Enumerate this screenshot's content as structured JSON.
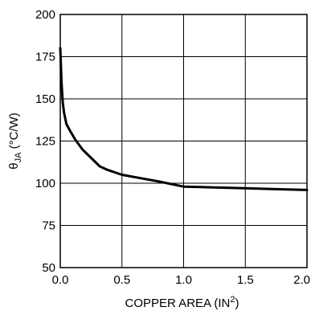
{
  "chart_data": {
    "type": "line",
    "title": "",
    "xlabel": "COPPER AREA (IN",
    "xlabel_sup": "2",
    "xlabel_tail": ")",
    "ylabel_theta": "θ",
    "ylabel_sub": "JA",
    "ylabel_unit": " (°C/W)",
    "xlim": [
      0,
      2
    ],
    "ylim": [
      50,
      200
    ],
    "grid": true,
    "x_ticks": [
      "0.0",
      "0.5",
      "1.0",
      "1.5",
      "2.0"
    ],
    "y_ticks": [
      "50",
      "75",
      "100",
      "125",
      "150",
      "175",
      "200"
    ],
    "series": [
      {
        "x": [
          0.0,
          0.01,
          0.02,
          0.03,
          0.05,
          0.08,
          0.12,
          0.18,
          0.25,
          0.32,
          0.38,
          0.5,
          0.65,
          0.8,
          1.0,
          1.25,
          1.5,
          1.75,
          2.0
        ],
        "y": [
          180,
          160,
          148,
          142,
          135,
          131,
          126,
          120,
          115,
          110,
          108,
          105,
          103,
          101,
          98,
          97.5,
          97,
          96.5,
          96
        ]
      }
    ]
  }
}
